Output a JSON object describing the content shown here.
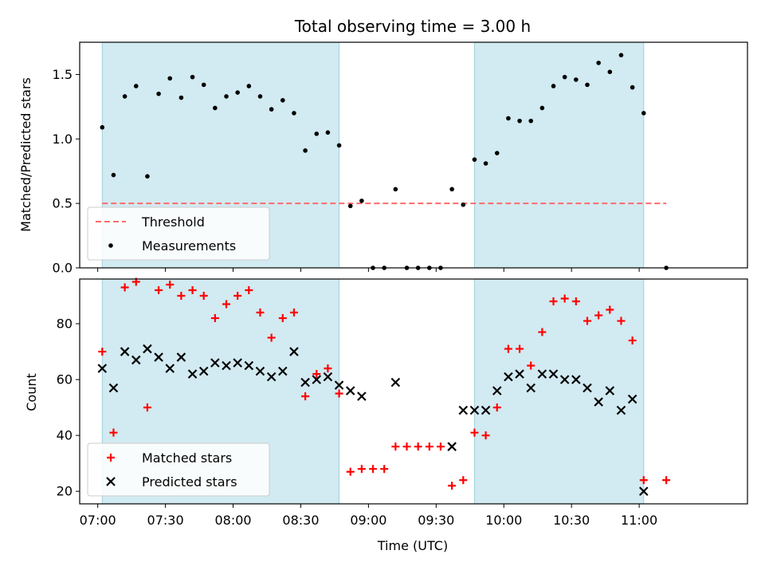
{
  "chart_data": {
    "type": "scatter",
    "title": "Total observing time = 3.00 h",
    "xlabel": "Time (UTC)",
    "x_ticks": [
      "07:00",
      "07:30",
      "08:00",
      "08:30",
      "09:00",
      "09:30",
      "10:00",
      "10:30",
      "11:00"
    ],
    "shaded_intervals": [
      [
        "07:02",
        "08:47"
      ],
      [
        "09:47",
        "11:02"
      ]
    ],
    "shade_color": "#add8e6",
    "panels": [
      {
        "name": "ratio",
        "ylabel": "Matched/Predicted stars",
        "ylim": [
          0,
          1.75
        ],
        "y_ticks": [
          "0.0",
          "0.5",
          "1.0",
          "1.5"
        ],
        "legend_position": "lower-left",
        "series": [
          {
            "name": "Threshold",
            "kind": "line",
            "style": "dashed",
            "color": "#ff6b6b",
            "x": [
              "07:02",
              "11:12"
            ],
            "y": [
              0.5,
              0.5
            ]
          },
          {
            "name": "Measurements",
            "kind": "scatter",
            "marker": "dot",
            "color": "#000000",
            "x": [
              "07:02",
              "07:07",
              "07:12",
              "07:17",
              "07:22",
              "07:27",
              "07:32",
              "07:37",
              "07:42",
              "07:47",
              "07:52",
              "07:57",
              "08:02",
              "08:07",
              "08:12",
              "08:17",
              "08:22",
              "08:27",
              "08:32",
              "08:37",
              "08:42",
              "08:47",
              "08:52",
              "08:57",
              "09:02",
              "09:07",
              "09:12",
              "09:17",
              "09:22",
              "09:27",
              "09:32",
              "09:37",
              "09:42",
              "09:47",
              "09:52",
              "09:57",
              "10:02",
              "10:07",
              "10:12",
              "10:17",
              "10:22",
              "10:27",
              "10:32",
              "10:37",
              "10:42",
              "10:47",
              "10:52",
              "10:57",
              "11:02",
              "11:12"
            ],
            "y": [
              1.09,
              0.72,
              1.33,
              1.41,
              0.71,
              1.35,
              1.47,
              1.32,
              1.48,
              1.42,
              1.24,
              1.33,
              1.36,
              1.41,
              1.33,
              1.23,
              1.3,
              1.2,
              0.91,
              1.04,
              1.05,
              0.95,
              0.48,
              0.52,
              0.0,
              0.0,
              0.61,
              0.0,
              0.0,
              0.0,
              0.0,
              0.61,
              0.49,
              0.84,
              0.81,
              0.89,
              1.16,
              1.14,
              1.14,
              1.24,
              1.41,
              1.48,
              1.46,
              1.42,
              1.59,
              1.52,
              1.65,
              1.4,
              1.2,
              0.0
            ]
          }
        ]
      },
      {
        "name": "counts",
        "ylabel": "Count",
        "ylim": [
          15.5,
          96
        ],
        "y_ticks": [
          "20",
          "40",
          "60",
          "80"
        ],
        "legend_position": "lower-left",
        "series": [
          {
            "name": "Matched stars",
            "kind": "scatter",
            "marker": "plus",
            "color": "#ff0000",
            "x": [
              "07:02",
              "07:07",
              "07:12",
              "07:17",
              "07:22",
              "07:27",
              "07:32",
              "07:37",
              "07:42",
              "07:47",
              "07:52",
              "07:57",
              "08:02",
              "08:07",
              "08:12",
              "08:17",
              "08:22",
              "08:27",
              "08:32",
              "08:37",
              "08:42",
              "08:47",
              "08:52",
              "08:57",
              "09:02",
              "09:07",
              "09:12",
              "09:17",
              "09:22",
              "09:27",
              "09:32",
              "09:37",
              "09:42",
              "09:47",
              "09:52",
              "09:57",
              "10:02",
              "10:07",
              "10:12",
              "10:17",
              "10:22",
              "10:27",
              "10:32",
              "10:37",
              "10:42",
              "10:47",
              "10:52",
              "10:57",
              "11:02",
              "11:12"
            ],
            "y": [
              70,
              41,
              93,
              95,
              50,
              92,
              94,
              90,
              92,
              90,
              82,
              87,
              90,
              92,
              84,
              75,
              82,
              84,
              54,
              62,
              64,
              55,
              27,
              28,
              28,
              28,
              36,
              36,
              36,
              36,
              36,
              22,
              24,
              41,
              40,
              50,
              71,
              71,
              65,
              77,
              88,
              89,
              88,
              81,
              83,
              85,
              81,
              74,
              24,
              24
            ]
          },
          {
            "name": "Predicted stars",
            "kind": "scatter",
            "marker": "x",
            "color": "#000000",
            "x": [
              "07:02",
              "07:07",
              "07:12",
              "07:17",
              "07:22",
              "07:27",
              "07:32",
              "07:37",
              "07:42",
              "07:47",
              "07:52",
              "07:57",
              "08:02",
              "08:07",
              "08:12",
              "08:17",
              "08:22",
              "08:27",
              "08:32",
              "08:37",
              "08:42",
              "08:47",
              "08:52",
              "08:57",
              "09:12",
              "09:37",
              "09:42",
              "09:47",
              "09:52",
              "09:57",
              "10:02",
              "10:07",
              "10:12",
              "10:17",
              "10:22",
              "10:27",
              "10:32",
              "10:37",
              "10:42",
              "10:47",
              "10:52",
              "10:57",
              "11:02"
            ],
            "y": [
              64,
              57,
              70,
              67,
              71,
              68,
              64,
              68,
              62,
              63,
              66,
              65,
              66,
              65,
              63,
              61,
              63,
              70,
              59,
              60,
              61,
              58,
              56,
              54,
              59,
              36,
              49,
              49,
              49,
              56,
              61,
              62,
              57,
              62,
              62,
              60,
              60,
              57,
              52,
              56,
              49,
              53,
              20
            ]
          }
        ]
      }
    ]
  }
}
